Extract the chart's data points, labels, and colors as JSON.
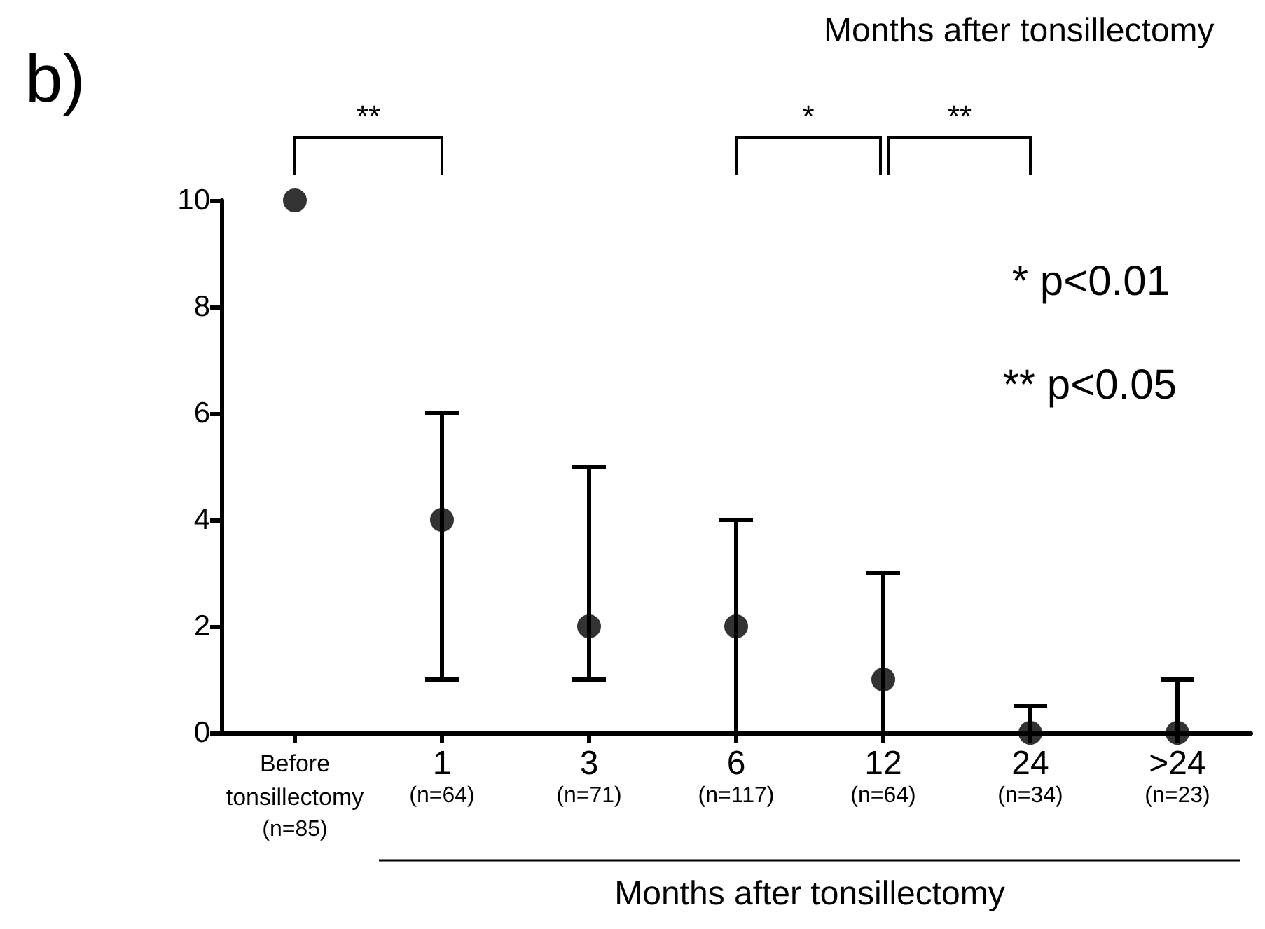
{
  "chart_data": {
    "type": "scatter",
    "title": "Months after tonsillectomy",
    "xlabel": "Months after tonsillectomy",
    "categories": [
      "Before\ntonsillectomy\n(n=85)",
      "1\n(n=64)",
      "3\n(n=71)",
      "6\n(n=117)",
      "12\n(n=64)",
      "24\n(n=34)",
      ">24\n(n=23)"
    ],
    "values": [
      10,
      4,
      2,
      2,
      1,
      0,
      0
    ],
    "errors": [
      null,
      [
        1,
        6
      ],
      [
        1,
        5
      ],
      [
        0,
        4
      ],
      [
        0,
        3
      ],
      [
        0,
        0.5
      ],
      [
        0,
        1
      ]
    ],
    "color": "#000000",
    "marker": "circle",
    "grid": false,
    "ylim": [
      0,
      10
    ],
    "yticks": [
      0,
      2,
      4,
      6,
      8,
      10
    ],
    "annotations": [
      "b)",
      "**",
      "*",
      "**",
      "* p<0.01",
      "** p<0.05"
    ]
  }
}
